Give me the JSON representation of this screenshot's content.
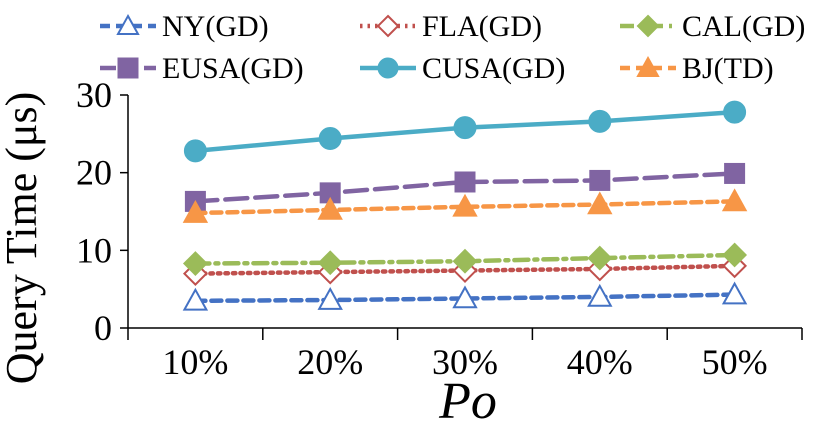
{
  "chart_data": {
    "type": "line",
    "title": "",
    "xlabel": "Po",
    "ylabel": "Query Time (μs)",
    "categories": [
      "10%",
      "20%",
      "30%",
      "40%",
      "50%"
    ],
    "ylim": [
      0,
      30
    ],
    "yticks": [
      "0",
      "10",
      "20",
      "30"
    ],
    "grid": false,
    "legend_position": "top",
    "series": [
      {
        "name": "NY(GD)",
        "values": [
          3.5,
          3.6,
          3.8,
          4.0,
          4.3
        ],
        "color": "#4472C4",
        "marker": "triangle-open",
        "dash": "dash"
      },
      {
        "name": "FLA(GD)",
        "values": [
          7.0,
          7.2,
          7.4,
          7.6,
          8.0
        ],
        "color": "#C0504D",
        "marker": "diamond-open",
        "dash": "dot"
      },
      {
        "name": "CAL(GD)",
        "values": [
          8.3,
          8.4,
          8.6,
          9.0,
          9.4
        ],
        "color": "#9BBB59",
        "marker": "diamond",
        "dash": "dashdot"
      },
      {
        "name": "EUSA(GD)",
        "values": [
          16.3,
          17.4,
          18.8,
          19.0,
          19.9
        ],
        "color": "#8064A2",
        "marker": "square",
        "dash": "longdash"
      },
      {
        "name": "CUSA(GD)",
        "values": [
          22.8,
          24.4,
          25.8,
          26.6,
          27.8
        ],
        "color": "#4BACC6",
        "marker": "circle",
        "dash": "solid"
      },
      {
        "name": "BJ(TD)",
        "values": [
          14.8,
          15.2,
          15.6,
          15.9,
          16.3
        ],
        "color": "#F79646",
        "marker": "triangle",
        "dash": "dash"
      }
    ]
  }
}
